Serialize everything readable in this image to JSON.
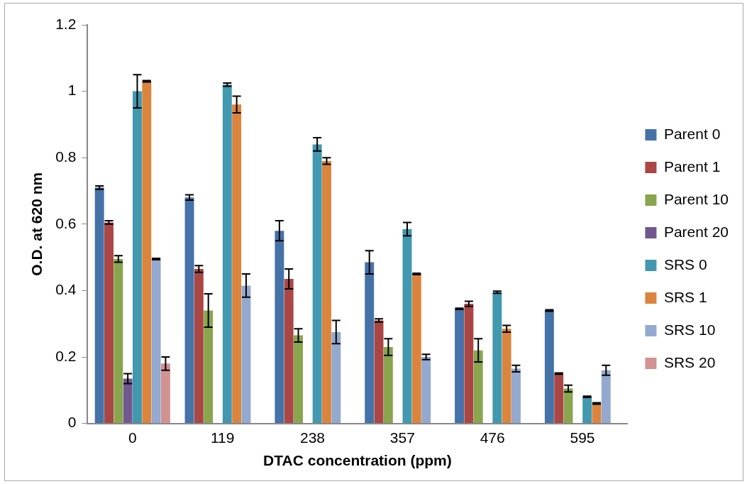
{
  "chart_data": {
    "type": "bar",
    "xlabel": "DTAC concentration (ppm)",
    "ylabel": "O.D. at 620 nm",
    "categories": [
      "0",
      "119",
      "238",
      "357",
      "476",
      "595"
    ],
    "ylim": [
      0,
      1.2
    ],
    "yticks": [
      0,
      0.2,
      0.4,
      0.6,
      0.8,
      1,
      1.2
    ],
    "grid": false,
    "legend": "right",
    "series": [
      {
        "name": "Parent 0",
        "color": "#4572a7",
        "values": [
          0.71,
          0.68,
          0.58,
          0.485,
          0.345,
          0.34
        ],
        "errors": [
          0.005,
          0.008,
          0.03,
          0.035,
          0.002,
          0.002
        ]
      },
      {
        "name": "Parent 1",
        "color": "#aa4643",
        "values": [
          0.605,
          0.465,
          0.435,
          0.31,
          0.36,
          0.15
        ],
        "errors": [
          0.005,
          0.01,
          0.03,
          0.005,
          0.008,
          0.002
        ]
      },
      {
        "name": "Parent 10",
        "color": "#89a54e",
        "values": [
          0.495,
          0.34,
          0.265,
          0.23,
          0.22,
          0.105
        ],
        "errors": [
          0.01,
          0.05,
          0.02,
          0.025,
          0.035,
          0.01
        ]
      },
      {
        "name": "Parent 20",
        "color": "#71588f",
        "values": [
          0.135,
          null,
          null,
          null,
          null,
          null
        ],
        "errors": [
          0.015,
          null,
          null,
          null,
          null,
          null
        ]
      },
      {
        "name": "SRS 0",
        "color": "#4198af",
        "values": [
          1.0,
          1.02,
          0.84,
          0.585,
          0.395,
          0.08
        ],
        "errors": [
          0.05,
          0.005,
          0.02,
          0.02,
          0.003,
          0.002
        ]
      },
      {
        "name": "SRS 1",
        "color": "#db843d",
        "values": [
          1.03,
          0.96,
          0.79,
          0.45,
          0.285,
          0.06
        ],
        "errors": [
          0.002,
          0.025,
          0.01,
          0.002,
          0.01,
          0.002
        ]
      },
      {
        "name": "SRS 10",
        "color": "#93a9cf",
        "values": [
          0.495,
          0.415,
          0.275,
          0.2,
          0.165,
          0.16
        ],
        "errors": [
          0.002,
          0.035,
          0.035,
          0.008,
          0.01,
          0.015
        ]
      },
      {
        "name": "SRS 20",
        "color": "#d19392",
        "values": [
          0.18,
          null,
          null,
          null,
          null,
          null
        ],
        "errors": [
          0.02,
          null,
          null,
          null,
          null,
          null
        ]
      }
    ]
  }
}
